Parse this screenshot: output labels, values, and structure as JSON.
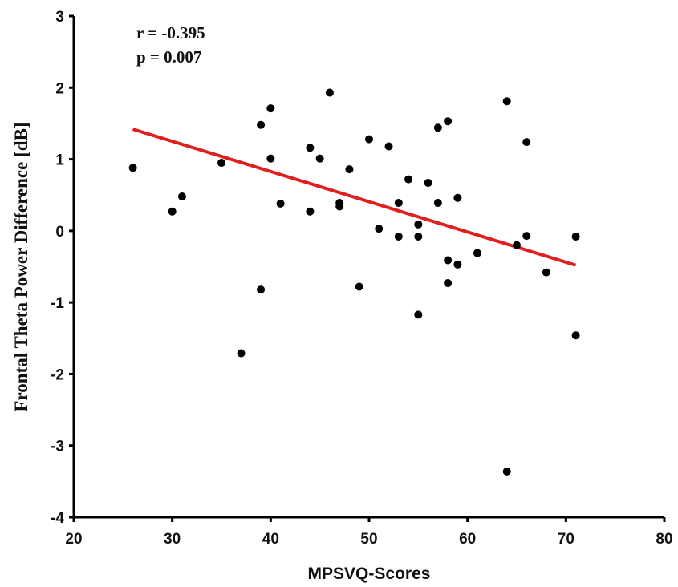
{
  "chart_data": {
    "type": "scatter",
    "title": "",
    "xlabel": "MPSVQ-Scores",
    "ylabel": "Frontal Theta Power Difference [dB]",
    "xlim": [
      20,
      80
    ],
    "ylim": [
      -4,
      3
    ],
    "xticks": [
      20,
      30,
      40,
      50,
      60,
      70,
      80
    ],
    "yticks": [
      -4,
      -3,
      -2,
      -1,
      0,
      1,
      2,
      3
    ],
    "grid": false,
    "annotations": {
      "r": "r = -0.395",
      "p": "p = 0.007"
    },
    "points": [
      [
        26,
        0.88
      ],
      [
        30,
        0.27
      ],
      [
        31,
        0.48
      ],
      [
        35,
        0.95
      ],
      [
        37,
        -1.71
      ],
      [
        39,
        1.48
      ],
      [
        39,
        -0.82
      ],
      [
        40,
        1.71
      ],
      [
        40,
        1.01
      ],
      [
        41,
        0.38
      ],
      [
        44,
        1.16
      ],
      [
        44,
        0.27
      ],
      [
        45,
        1.01
      ],
      [
        46,
        1.93
      ],
      [
        47,
        0.39
      ],
      [
        47,
        0.34
      ],
      [
        48,
        0.86
      ],
      [
        49,
        -0.78
      ],
      [
        50,
        1.28
      ],
      [
        51,
        0.03
      ],
      [
        52,
        1.18
      ],
      [
        53,
        0.39
      ],
      [
        53,
        -0.08
      ],
      [
        54,
        0.72
      ],
      [
        55,
        0.09
      ],
      [
        55,
        -0.08
      ],
      [
        55,
        -1.17
      ],
      [
        56,
        0.67
      ],
      [
        57,
        1.44
      ],
      [
        57,
        0.39
      ],
      [
        58,
        1.53
      ],
      [
        58,
        -0.41
      ],
      [
        58,
        -0.73
      ],
      [
        59,
        0.46
      ],
      [
        59,
        -0.47
      ],
      [
        61,
        -0.31
      ],
      [
        64,
        1.81
      ],
      [
        64,
        -3.36
      ],
      [
        65,
        -0.2
      ],
      [
        66,
        -0.07
      ],
      [
        66,
        1.24
      ],
      [
        68,
        -0.58
      ],
      [
        71,
        -0.08
      ],
      [
        71,
        -1.46
      ]
    ],
    "fit_line": {
      "x": [
        26,
        71
      ],
      "y": [
        1.42,
        -0.48
      ],
      "color": "#e02020"
    },
    "point_color": "#000000"
  }
}
